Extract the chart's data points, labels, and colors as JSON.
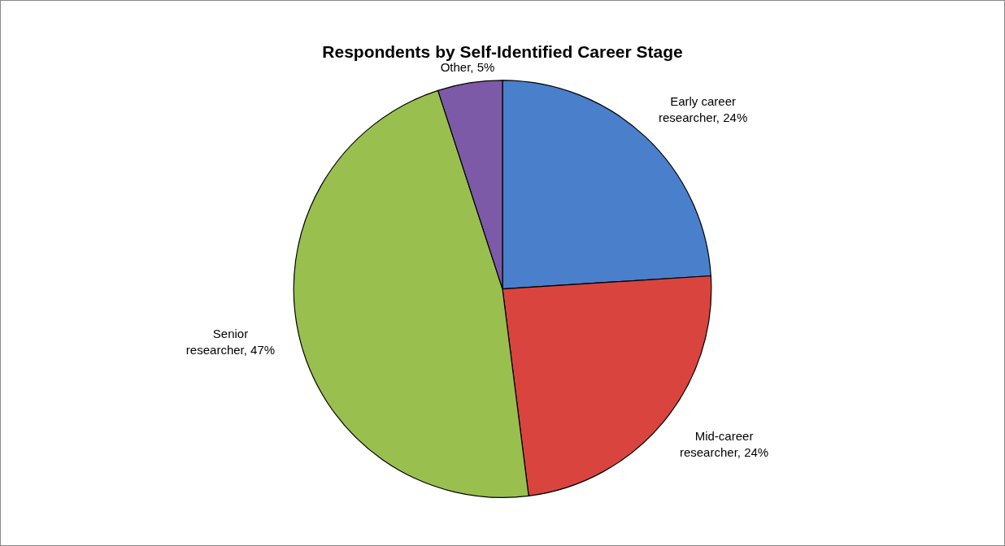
{
  "chart_data": {
    "type": "pie",
    "title": "Respondents by Self-Identified Career Stage",
    "categories": [
      "Early career researcher",
      "Mid-career researcher",
      "Senior researcher",
      "Other"
    ],
    "values": [
      24,
      24,
      47,
      5
    ],
    "value_labels": [
      "24%",
      "24%",
      "47%",
      "5%"
    ],
    "colors": [
      "#4a7fcb",
      "#d9443f",
      "#99bf4f",
      "#7d5aa8"
    ],
    "legend": false
  }
}
